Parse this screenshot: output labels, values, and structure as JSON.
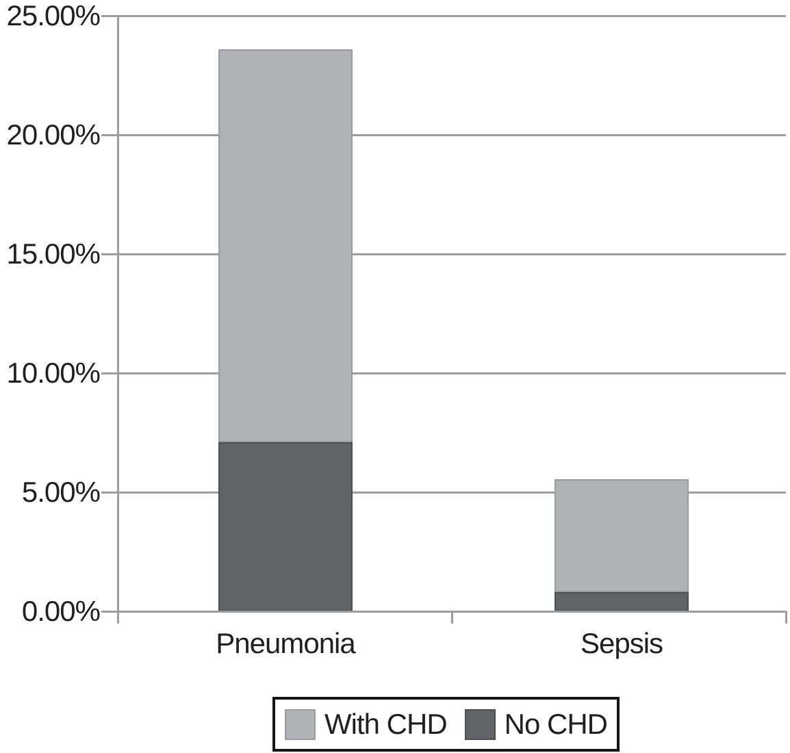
{
  "figure": {
    "background": "#ffffff",
    "text_color": "#231f20",
    "axis_color": "#9c9da0",
    "legend_border_color": "#141414"
  },
  "chart_data": {
    "type": "bar",
    "variant": "stacked-column",
    "title": "",
    "xlabel": "",
    "ylabel": "",
    "categories": [
      "Pneumonia",
      "Sepsis"
    ],
    "series": [
      {
        "name": "With CHD",
        "stack": "top",
        "color": "#b1b2b5",
        "border_color": "#9a9b9e",
        "values": [
          16.5,
          4.75
        ]
      },
      {
        "name": "No CHD",
        "stack": "bottom",
        "color": "#626366",
        "border_color": "#4d4e52",
        "values": [
          7.1,
          0.8
        ]
      }
    ],
    "stacked_totals": [
      23.6,
      5.55
    ],
    "ylim": [
      0,
      25
    ],
    "ytick_step": 5,
    "ytick_labels": [
      "0.00%",
      "5.00%",
      "10.00%",
      "15.00%",
      "20.00%",
      "25.00%"
    ],
    "grid": true,
    "legend": {
      "position": "bottom-center",
      "order": [
        "With CHD",
        "No CHD"
      ]
    }
  }
}
